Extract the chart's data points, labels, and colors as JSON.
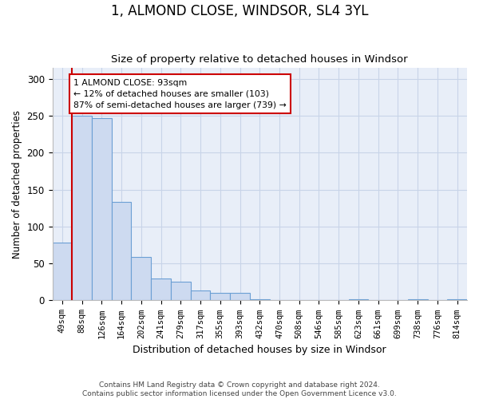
{
  "title": "1, ALMOND CLOSE, WINDSOR, SL4 3YL",
  "subtitle": "Size of property relative to detached houses in Windsor",
  "xlabel": "Distribution of detached houses by size in Windsor",
  "ylabel": "Number of detached properties",
  "bar_labels": [
    "49sqm",
    "88sqm",
    "126sqm",
    "164sqm",
    "202sqm",
    "241sqm",
    "279sqm",
    "317sqm",
    "355sqm",
    "393sqm",
    "432sqm",
    "470sqm",
    "508sqm",
    "546sqm",
    "585sqm",
    "623sqm",
    "661sqm",
    "699sqm",
    "738sqm",
    "776sqm",
    "814sqm"
  ],
  "bar_values": [
    78,
    250,
    247,
    133,
    59,
    30,
    25,
    13,
    10,
    10,
    2,
    0,
    0,
    0,
    0,
    2,
    0,
    0,
    2,
    0,
    2
  ],
  "bar_color": "#cddaf0",
  "bar_edge_color": "#6b9fd4",
  "annotation_line_label": "1 ALMOND CLOSE: 93sqm",
  "annotation_text_line2": "← 12% of detached houses are smaller (103)",
  "annotation_text_line3": "87% of semi-detached houses are larger (739) →",
  "vline_color": "#cc0000",
  "annotation_box_color": "#ffffff",
  "annotation_box_edge_color": "#cc0000",
  "ylim": [
    0,
    315
  ],
  "yticks": [
    0,
    50,
    100,
    150,
    200,
    250,
    300
  ],
  "grid_color": "#c8d4e8",
  "bg_color": "#e8eef8",
  "footer_line1": "Contains HM Land Registry data © Crown copyright and database right 2024.",
  "footer_line2": "Contains public sector information licensed under the Open Government Licence v3.0."
}
